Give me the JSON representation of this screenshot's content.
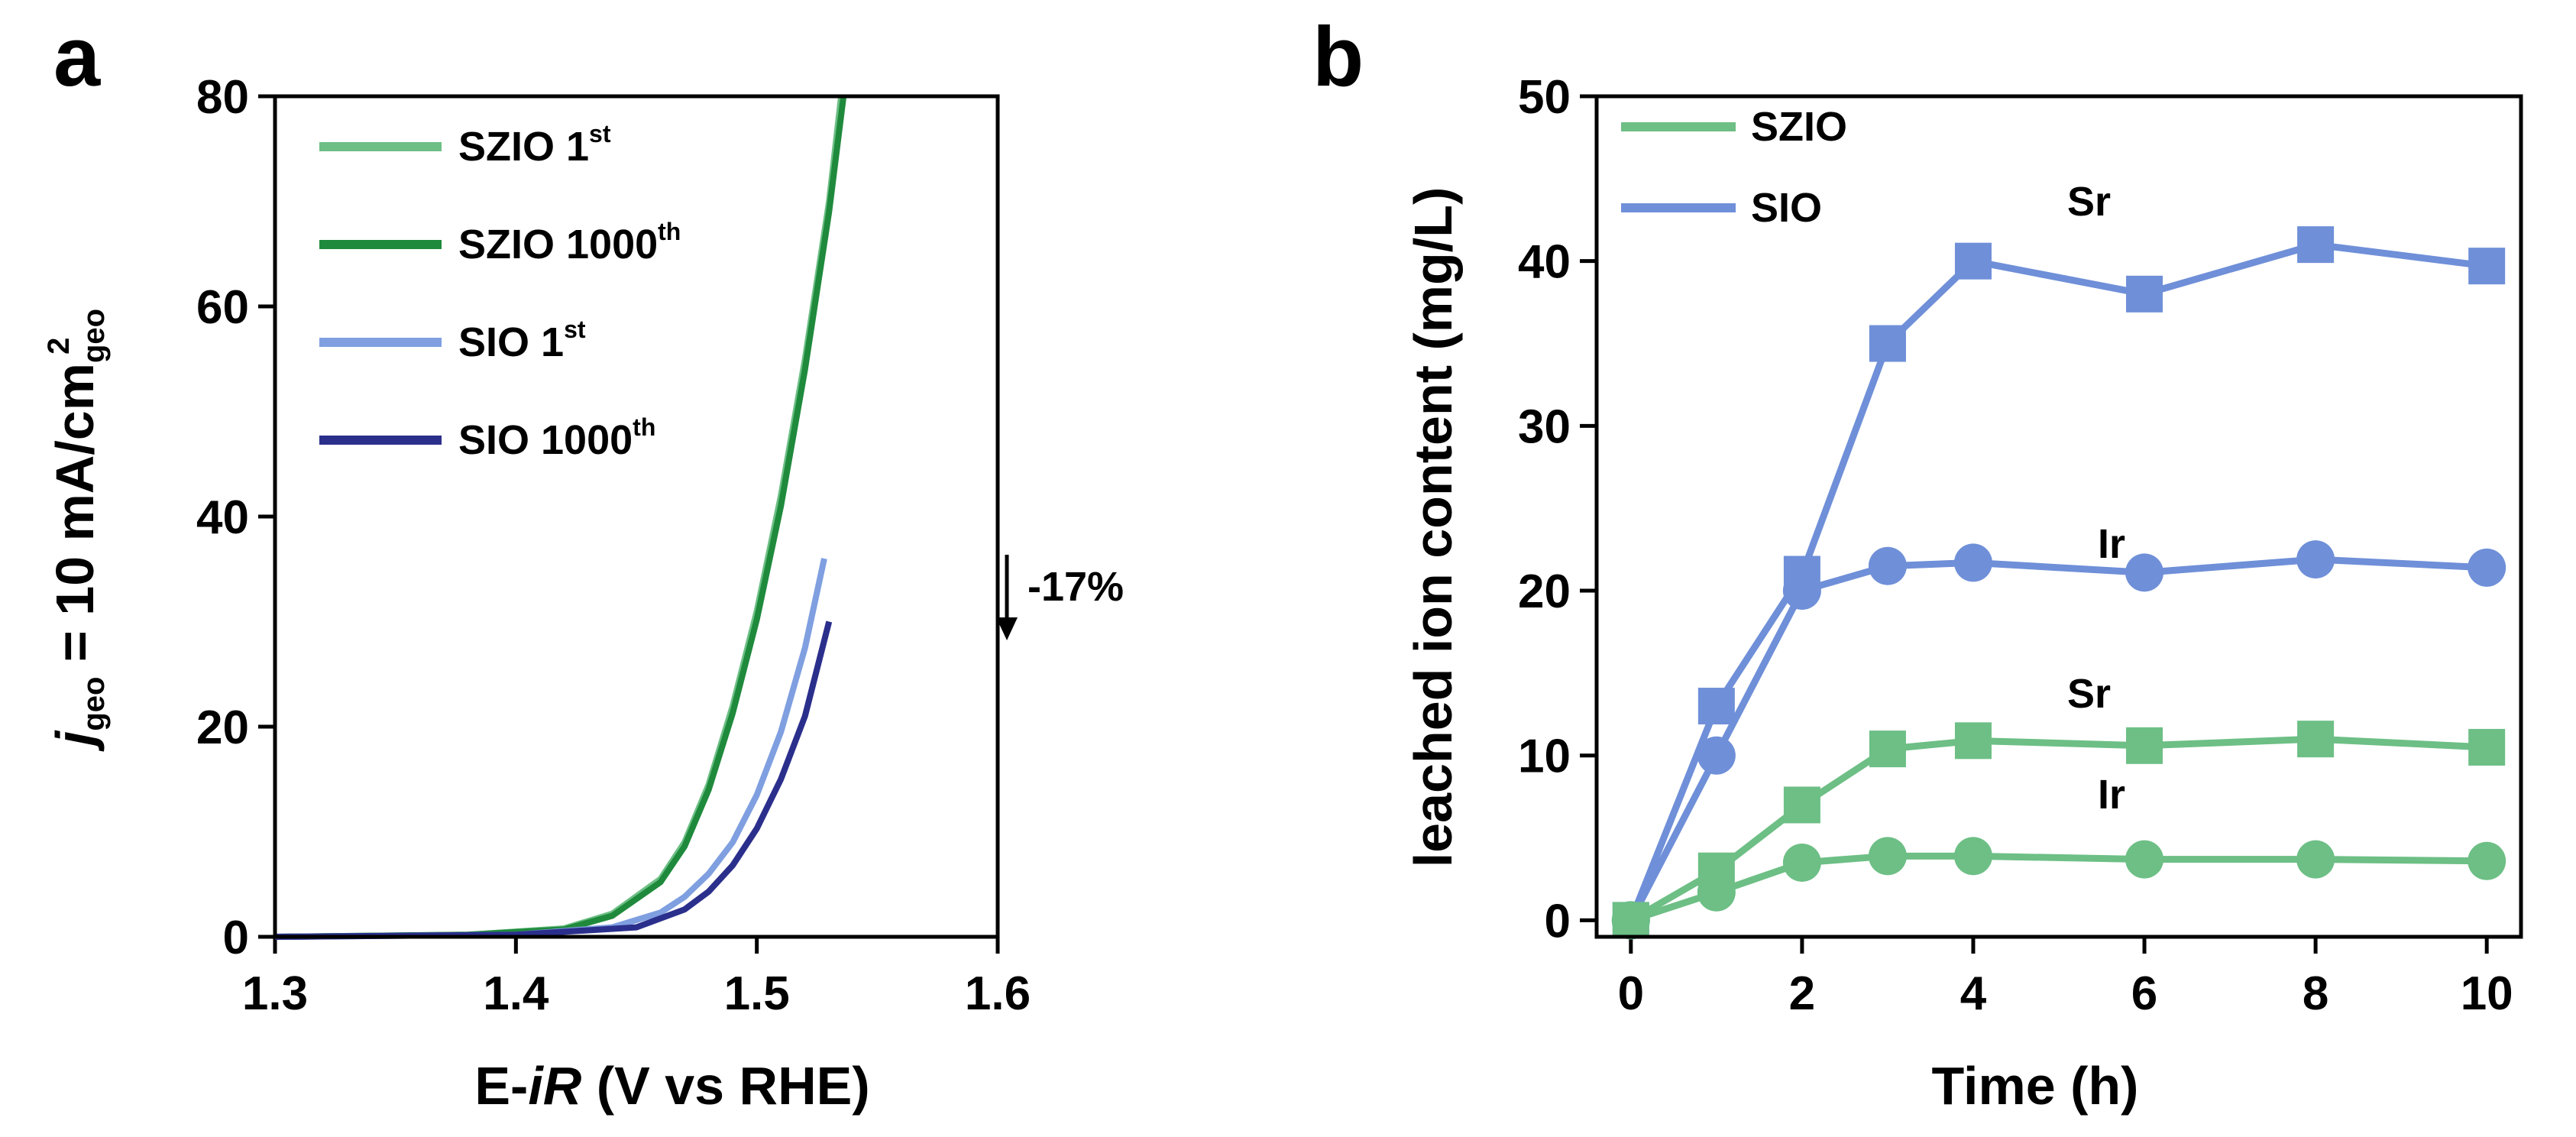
{
  "chart_data": [
    {
      "type": "line",
      "panel_label": "a",
      "xlabel_prefix": "E-",
      "xlabel_italic": "iR",
      "xlabel_suffix": " (V vs RHE)",
      "ylabel_j": "j",
      "ylabel_sub": "geo",
      "ylabel_main": " = 10 mA/cm",
      "ylabel_sub2": "geo",
      "ylabel_sup": "2",
      "xlim": [
        1.3,
        1.6
      ],
      "ylim": [
        0,
        80
      ],
      "xticks": [
        1.3,
        1.4,
        1.5,
        1.6
      ],
      "xtick_labels": [
        "1.3",
        "1.4",
        "1.5",
        "1.6"
      ],
      "yticks": [
        0,
        20,
        40,
        60,
        80
      ],
      "ytick_labels": [
        "0",
        "20",
        "40",
        "60",
        "80"
      ],
      "series": [
        {
          "name": "SZIO",
          "sup": "st",
          "suffix": " 1",
          "color": "#6dbf85",
          "x": [
            1.3,
            1.38,
            1.42,
            1.44,
            1.46,
            1.47,
            1.48,
            1.49,
            1.5,
            1.51,
            1.52,
            1.53,
            1.535
          ],
          "y": [
            0,
            0.2,
            0.8,
            2.2,
            5.5,
            9.0,
            14.5,
            22.0,
            31.0,
            42.0,
            55.0,
            70.0,
            80.0
          ]
        },
        {
          "name": "SZIO",
          "sup": "th",
          "suffix": " 1000",
          "color": "#1f8a3c",
          "x": [
            1.3,
            1.38,
            1.42,
            1.44,
            1.46,
            1.47,
            1.48,
            1.49,
            1.5,
            1.51,
            1.52,
            1.53,
            1.536
          ],
          "y": [
            0,
            0.2,
            0.7,
            2.0,
            5.2,
            8.6,
            14.0,
            21.3,
            30.2,
            41.0,
            54.0,
            69.0,
            80.0
          ]
        },
        {
          "name": "SIO",
          "sup": "st",
          "suffix": " 1",
          "color": "#7f9fe0",
          "x": [
            1.3,
            1.4,
            1.44,
            1.46,
            1.47,
            1.48,
            1.49,
            1.5,
            1.51,
            1.52,
            1.528
          ],
          "y": [
            0,
            0.2,
            0.9,
            2.3,
            3.8,
            6.0,
            9.0,
            13.5,
            19.5,
            27.5,
            36.0
          ]
        },
        {
          "name": "SIO",
          "sup": "th",
          "suffix": " 1000",
          "color": "#2b2f8c",
          "x": [
            1.3,
            1.4,
            1.45,
            1.47,
            1.48,
            1.49,
            1.5,
            1.51,
            1.52,
            1.53
          ],
          "y": [
            0,
            0.2,
            0.9,
            2.6,
            4.3,
            6.8,
            10.3,
            15.0,
            21.0,
            30.0
          ]
        }
      ],
      "annotation": "-17%"
    },
    {
      "type": "line",
      "panel_label": "b",
      "xlabel": "Time (h)",
      "ylabel": "leached ion content  (mg/L)",
      "xlim": [
        -0.4,
        10.4
      ],
      "ylim": [
        -1,
        50
      ],
      "xticks": [
        0,
        2,
        4,
        6,
        8,
        10
      ],
      "xtick_labels": [
        "0",
        "2",
        "4",
        "6",
        "8",
        "10"
      ],
      "yticks": [
        0,
        10,
        20,
        30,
        40,
        50
      ],
      "ytick_labels": [
        "0",
        "10",
        "20",
        "30",
        "40",
        "50"
      ],
      "x": [
        0,
        1,
        2,
        3,
        4,
        6,
        8,
        10
      ],
      "series": [
        {
          "name": "SIO",
          "element": "Sr",
          "marker": "square",
          "color": "#6f8fd8",
          "values": [
            0,
            13,
            21,
            35,
            40,
            38,
            41,
            39.7
          ]
        },
        {
          "name": "SIO",
          "element": "Ir",
          "marker": "circle",
          "color": "#6f8fd8",
          "values": [
            0,
            10,
            20,
            21.5,
            21.7,
            21.1,
            21.9,
            21.4
          ]
        },
        {
          "name": "SZIO",
          "element": "Sr",
          "marker": "square",
          "color": "#6dbf85",
          "values": [
            0,
            3,
            7,
            10.4,
            10.9,
            10.6,
            11,
            10.5
          ]
        },
        {
          "name": "SZIO",
          "element": "Ir",
          "marker": "circle",
          "color": "#6dbf85",
          "values": [
            0,
            1.7,
            3.5,
            3.9,
            3.9,
            3.7,
            3.7,
            3.6
          ]
        }
      ],
      "legend": [
        {
          "label": "SZIO",
          "color": "#6dbf85"
        },
        {
          "label": "SIO",
          "color": "#6f8fd8"
        }
      ],
      "labels": {
        "sio_sr": "Sr",
        "sio_ir": "Ir",
        "szio_sr": "Sr",
        "szio_ir": "Ir"
      }
    }
  ]
}
